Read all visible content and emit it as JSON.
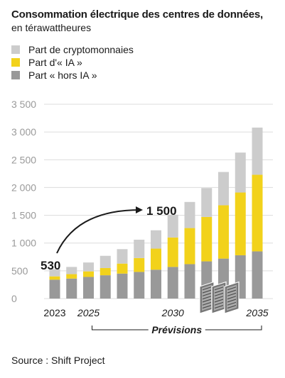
{
  "chart_data": {
    "type": "bar",
    "stacked": true,
    "title": "Consommation électrique des centres de données,",
    "subtitle": "en térawattheures",
    "categories": [
      "2023",
      "2024",
      "2025",
      "2026",
      "2027",
      "2028",
      "2029",
      "2030",
      "2031",
      "2032",
      "2033",
      "2034",
      "2035"
    ],
    "x_tick_labels": [
      {
        "category": "2023",
        "label": "2023",
        "italic": false
      },
      {
        "category": "2025",
        "label": "2025",
        "italic": true
      },
      {
        "category": "2030",
        "label": "2030",
        "italic": true
      },
      {
        "category": "2035",
        "label": "2035",
        "italic": true
      }
    ],
    "y_ticks": [
      {
        "value": 0,
        "label": "0"
      },
      {
        "value": 500,
        "label": "500"
      },
      {
        "value": 1000,
        "label": "1 000"
      },
      {
        "value": 1500,
        "label": "1 500"
      },
      {
        "value": 2000,
        "label": "2 000"
      },
      {
        "value": 2500,
        "label": "2 500"
      },
      {
        "value": 3000,
        "label": "3 000"
      },
      {
        "value": 3500,
        "label": "3 500"
      }
    ],
    "ylim": [
      0,
      3500
    ],
    "grid": true,
    "legend_position": "top-left",
    "series": [
      {
        "name": "Part « hors IA »",
        "color": "#999999",
        "values": [
          340,
          360,
          390,
          420,
          450,
          480,
          520,
          570,
          620,
          670,
          720,
          780,
          850
        ]
      },
      {
        "name": "Part d'« IA »",
        "color": "#f2d21b",
        "values": [
          60,
          80,
          100,
          130,
          180,
          250,
          380,
          530,
          650,
          800,
          960,
          1130,
          1380
        ]
      },
      {
        "name": "Part de cryptomonnaies",
        "color": "#cccccc",
        "values": [
          130,
          130,
          160,
          220,
          260,
          330,
          330,
          410,
          470,
          520,
          600,
          720,
          850
        ]
      }
    ],
    "legend": [
      {
        "label": "Part de cryptomonnaies",
        "color": "#cccccc"
      },
      {
        "label": "Part d'« IA »",
        "color": "#f2d21b"
      },
      {
        "label": "Part « hors IA »",
        "color": "#999999"
      }
    ],
    "annotations": {
      "start": {
        "category": "2023",
        "label": "530"
      },
      "end": {
        "category": "2030",
        "label": "1 500"
      },
      "forecast": {
        "from": "2025",
        "to": "2035",
        "label": "Prévisions"
      }
    }
  },
  "source": "Source : Shift Project"
}
